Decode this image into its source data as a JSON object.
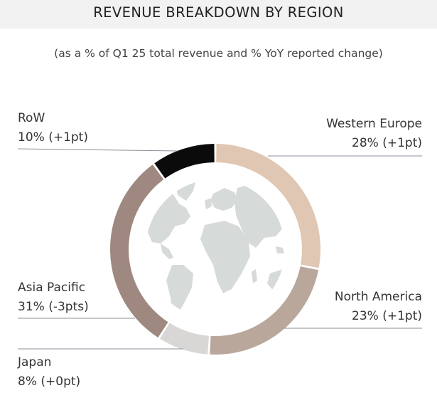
{
  "title": "REVENUE BREAKDOWN BY REGION",
  "subtitle": "(as a % of Q1 25 total revenue and % YoY reported change)",
  "chart_data": {
    "type": "pie",
    "variant": "donut",
    "title": "REVENUE BREAKDOWN BY REGION",
    "subtitle": "(as a % of Q1 25 total revenue and % YoY reported change)",
    "unit": "% of Q1 25 total revenue",
    "slices": [
      {
        "label": "Western Europe",
        "value": 28,
        "value_text": "28% (+1pt)",
        "change": "+1pt",
        "color": "#dfc7b3"
      },
      {
        "label": "North America",
        "value": 23,
        "value_text": "23% (+1pt)",
        "change": "+1pt",
        "color": "#baa79c"
      },
      {
        "label": "Japan",
        "value": 8,
        "value_text": "8% (+0pt)",
        "change": "+0pt",
        "color": "#d9d7d5"
      },
      {
        "label": "Asia Pacific",
        "value": 31,
        "value_text": "31% (-3pts)",
        "change": "-3pts",
        "color": "#9e8880"
      },
      {
        "label": "RoW",
        "value": 10,
        "value_text": "10% (+1pt)",
        "change": "+1pt",
        "color": "#0b0b0b"
      }
    ],
    "center_image": "world-map",
    "legend": "callout-labels"
  }
}
